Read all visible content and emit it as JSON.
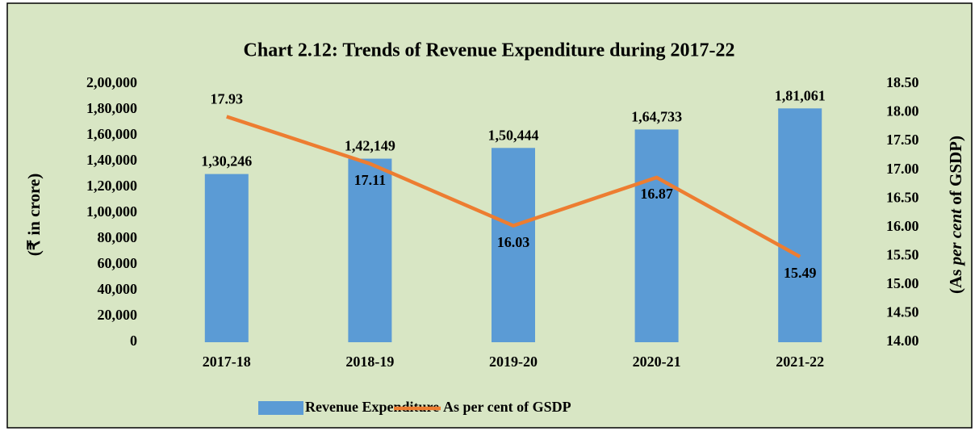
{
  "chart_data": {
    "type": "bar-line",
    "title": "Chart 2.12: Trends of Revenue Expenditure during 2017-22",
    "ylabel": "(₹ in crore)",
    "y2label": [
      "(As ",
      "per cent",
      " of GSDP)"
    ],
    "categories": [
      "2017-18",
      "2018-19",
      "2019-20",
      "2020-21",
      "2021-22"
    ],
    "series": [
      {
        "name": "Revenue Expenditure",
        "type": "bar",
        "color": "#5b9bd5",
        "axis": "y",
        "values": [
          130246,
          142149,
          150444,
          164733,
          181061
        ],
        "value_labels": [
          "1,30,246",
          "1,42,149",
          "1,50,444",
          "1,64,733",
          "1,81,061"
        ]
      },
      {
        "name": "As per cent of GSDP",
        "type": "line",
        "color": "#ed7d31",
        "axis": "y2",
        "values": [
          17.93,
          17.11,
          16.03,
          16.87,
          15.49
        ]
      }
    ],
    "ylim": [
      0,
      200000
    ],
    "yticks": [
      0,
      {
        "value": 20000,
        "label": "20,000"
      },
      {
        "value": 40000,
        "label": "40,000"
      },
      {
        "value": 60000,
        "label": "60,000"
      },
      {
        "value": 80000,
        "label": "80,000"
      },
      {
        "value": 100000,
        "label": "1,00,000"
      },
      {
        "value": 120000,
        "label": "1,20,000"
      },
      {
        "value": 140000,
        "label": "1,40,000"
      },
      {
        "value": 160000,
        "label": "1,60,000"
      },
      {
        "value": 180000,
        "label": "1,80,000"
      },
      {
        "value": 200000,
        "label": "2,00,000"
      }
    ],
    "y2lim": [
      14,
      18.5
    ],
    "y2ticks": [
      {
        "value": 14,
        "label": "14.00"
      },
      {
        "value": 14.5,
        "label": "14.50"
      },
      {
        "value": 15,
        "label": "15.00"
      },
      {
        "value": 15.5,
        "label": "15.50"
      },
      {
        "value": 16,
        "label": "16.00"
      },
      {
        "value": 16.5,
        "label": "16.50"
      },
      {
        "value": 17,
        "label": "17.00"
      },
      {
        "value": 17.5,
        "label": "17.50"
      },
      {
        "value": 18,
        "label": "18.00"
      },
      {
        "value": 18.5,
        "label": "18.50"
      }
    ],
    "legend": "bottom"
  }
}
